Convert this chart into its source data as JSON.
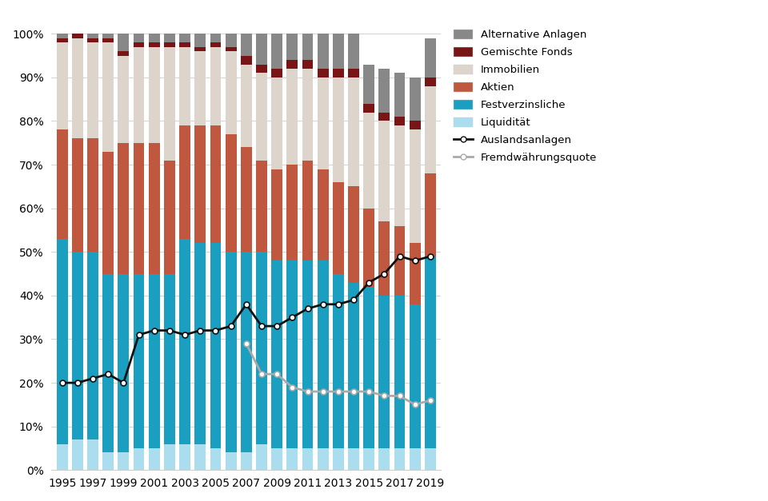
{
  "years": [
    1995,
    1996,
    1997,
    1998,
    1999,
    2000,
    2001,
    2002,
    2003,
    2004,
    2005,
    2006,
    2007,
    2008,
    2009,
    2010,
    2011,
    2012,
    2013,
    2014,
    2015,
    2016,
    2017,
    2018,
    2019
  ],
  "Liquiditaet": [
    6,
    7,
    7,
    4,
    4,
    5,
    5,
    6,
    6,
    6,
    5,
    4,
    4,
    6,
    5,
    5,
    5,
    5,
    5,
    5,
    5,
    5,
    5,
    5,
    5
  ],
  "Festverzinsliche": [
    47,
    43,
    43,
    41,
    41,
    40,
    40,
    39,
    47,
    46,
    47,
    46,
    46,
    44,
    43,
    43,
    43,
    43,
    40,
    38,
    37,
    35,
    35,
    33,
    44
  ],
  "Aktien": [
    25,
    26,
    26,
    28,
    30,
    30,
    30,
    26,
    26,
    27,
    27,
    27,
    24,
    21,
    21,
    22,
    23,
    21,
    21,
    22,
    18,
    17,
    16,
    14,
    19
  ],
  "Immobilien": [
    20,
    23,
    22,
    25,
    20,
    22,
    22,
    26,
    18,
    17,
    18,
    19,
    19,
    20,
    21,
    22,
    21,
    21,
    24,
    25,
    22,
    23,
    23,
    26,
    20
  ],
  "Gemischte_Fonds": [
    1,
    1,
    1,
    1,
    1,
    1,
    1,
    1,
    1,
    1,
    1,
    1,
    2,
    2,
    2,
    2,
    2,
    2,
    2,
    2,
    2,
    2,
    2,
    2,
    2
  ],
  "Alternative_Anlagen": [
    1,
    0,
    1,
    1,
    4,
    2,
    2,
    2,
    2,
    3,
    2,
    3,
    5,
    7,
    8,
    6,
    6,
    8,
    8,
    8,
    9,
    10,
    10,
    10,
    9
  ],
  "Auslandsanlagen": [
    20,
    20,
    21,
    22,
    20,
    31,
    32,
    32,
    31,
    32,
    32,
    33,
    38,
    33,
    33,
    35,
    37,
    38,
    38,
    39,
    43,
    45,
    49,
    48,
    49
  ],
  "Fremdwaehrungsquote": [
    null,
    null,
    null,
    null,
    null,
    null,
    null,
    null,
    null,
    null,
    null,
    null,
    29,
    22,
    22,
    19,
    18,
    18,
    18,
    18,
    18,
    17,
    17,
    15,
    16
  ],
  "colors": {
    "Liquiditaet": "#aaddee",
    "Festverzinsliche": "#1a9fc0",
    "Aktien": "#c05840",
    "Immobilien": "#ddd5cc",
    "Gemischte_Fonds": "#7a1515",
    "Alternative_Anlagen": "#888888"
  },
  "line_colors": {
    "Auslandsanlagen": "#111111",
    "Fremdwaehrungsquote": "#aaaaaa"
  },
  "background_color": "#ffffff",
  "grid_color": "#cccccc"
}
